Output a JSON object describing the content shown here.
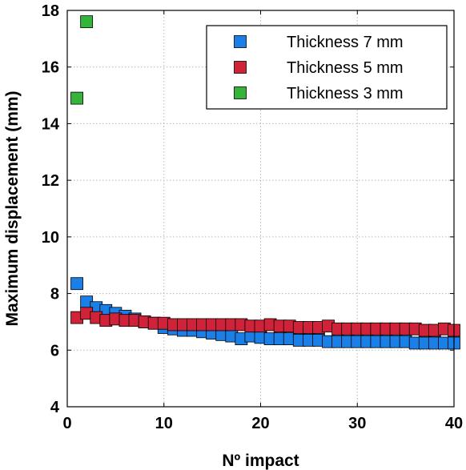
{
  "chart_data": {
    "type": "scatter",
    "title": "",
    "xlabel": "Nº impact",
    "ylabel": "Maximum displacement (mm)",
    "xlim": [
      0,
      40
    ],
    "ylim": [
      4,
      18
    ],
    "xticks": [
      "0",
      "10",
      "20",
      "30",
      "40"
    ],
    "yticks": [
      "4",
      "6",
      "8",
      "10",
      "12",
      "14",
      "16",
      "18"
    ],
    "grid": true,
    "legend_position": "top-right",
    "series": [
      {
        "name": "Thickness 7 mm",
        "color": "#1a7fe6",
        "marker": "square",
        "x": [
          1,
          2,
          3,
          4,
          5,
          6,
          7,
          8,
          9,
          10,
          11,
          12,
          13,
          14,
          15,
          16,
          17,
          18,
          19,
          20,
          21,
          22,
          23,
          24,
          25,
          26,
          27,
          28,
          29,
          30,
          31,
          32,
          33,
          34,
          35,
          36,
          37,
          38,
          39,
          40
        ],
        "y": [
          8.35,
          7.7,
          7.5,
          7.4,
          7.3,
          7.2,
          7.1,
          7.0,
          6.95,
          6.8,
          6.75,
          6.7,
          6.7,
          6.65,
          6.6,
          6.55,
          6.5,
          6.4,
          6.5,
          6.45,
          6.4,
          6.4,
          6.4,
          6.35,
          6.35,
          6.35,
          6.3,
          6.3,
          6.3,
          6.3,
          6.3,
          6.3,
          6.3,
          6.3,
          6.3,
          6.25,
          6.25,
          6.25,
          6.25,
          6.25
        ]
      },
      {
        "name": "Thickness 5 mm",
        "color": "#d0233a",
        "marker": "square",
        "x": [
          1,
          2,
          3,
          4,
          5,
          6,
          7,
          8,
          9,
          10,
          11,
          12,
          13,
          14,
          15,
          16,
          17,
          18,
          19,
          20,
          21,
          22,
          23,
          24,
          25,
          26,
          27,
          28,
          29,
          30,
          31,
          32,
          33,
          34,
          35,
          36,
          37,
          38,
          39,
          40
        ],
        "y": [
          7.15,
          7.3,
          7.15,
          7.05,
          7.1,
          7.05,
          7.05,
          7.0,
          6.95,
          6.95,
          6.9,
          6.9,
          6.9,
          6.9,
          6.9,
          6.9,
          6.9,
          6.9,
          6.85,
          6.85,
          6.9,
          6.85,
          6.85,
          6.8,
          6.8,
          6.8,
          6.85,
          6.75,
          6.75,
          6.75,
          6.75,
          6.75,
          6.75,
          6.75,
          6.75,
          6.75,
          6.7,
          6.7,
          6.75,
          6.7
        ]
      },
      {
        "name": "Thickness 3 mm",
        "color": "#34b53a",
        "marker": "square",
        "x": [
          1,
          2
        ],
        "y": [
          14.9,
          17.6
        ]
      }
    ]
  }
}
